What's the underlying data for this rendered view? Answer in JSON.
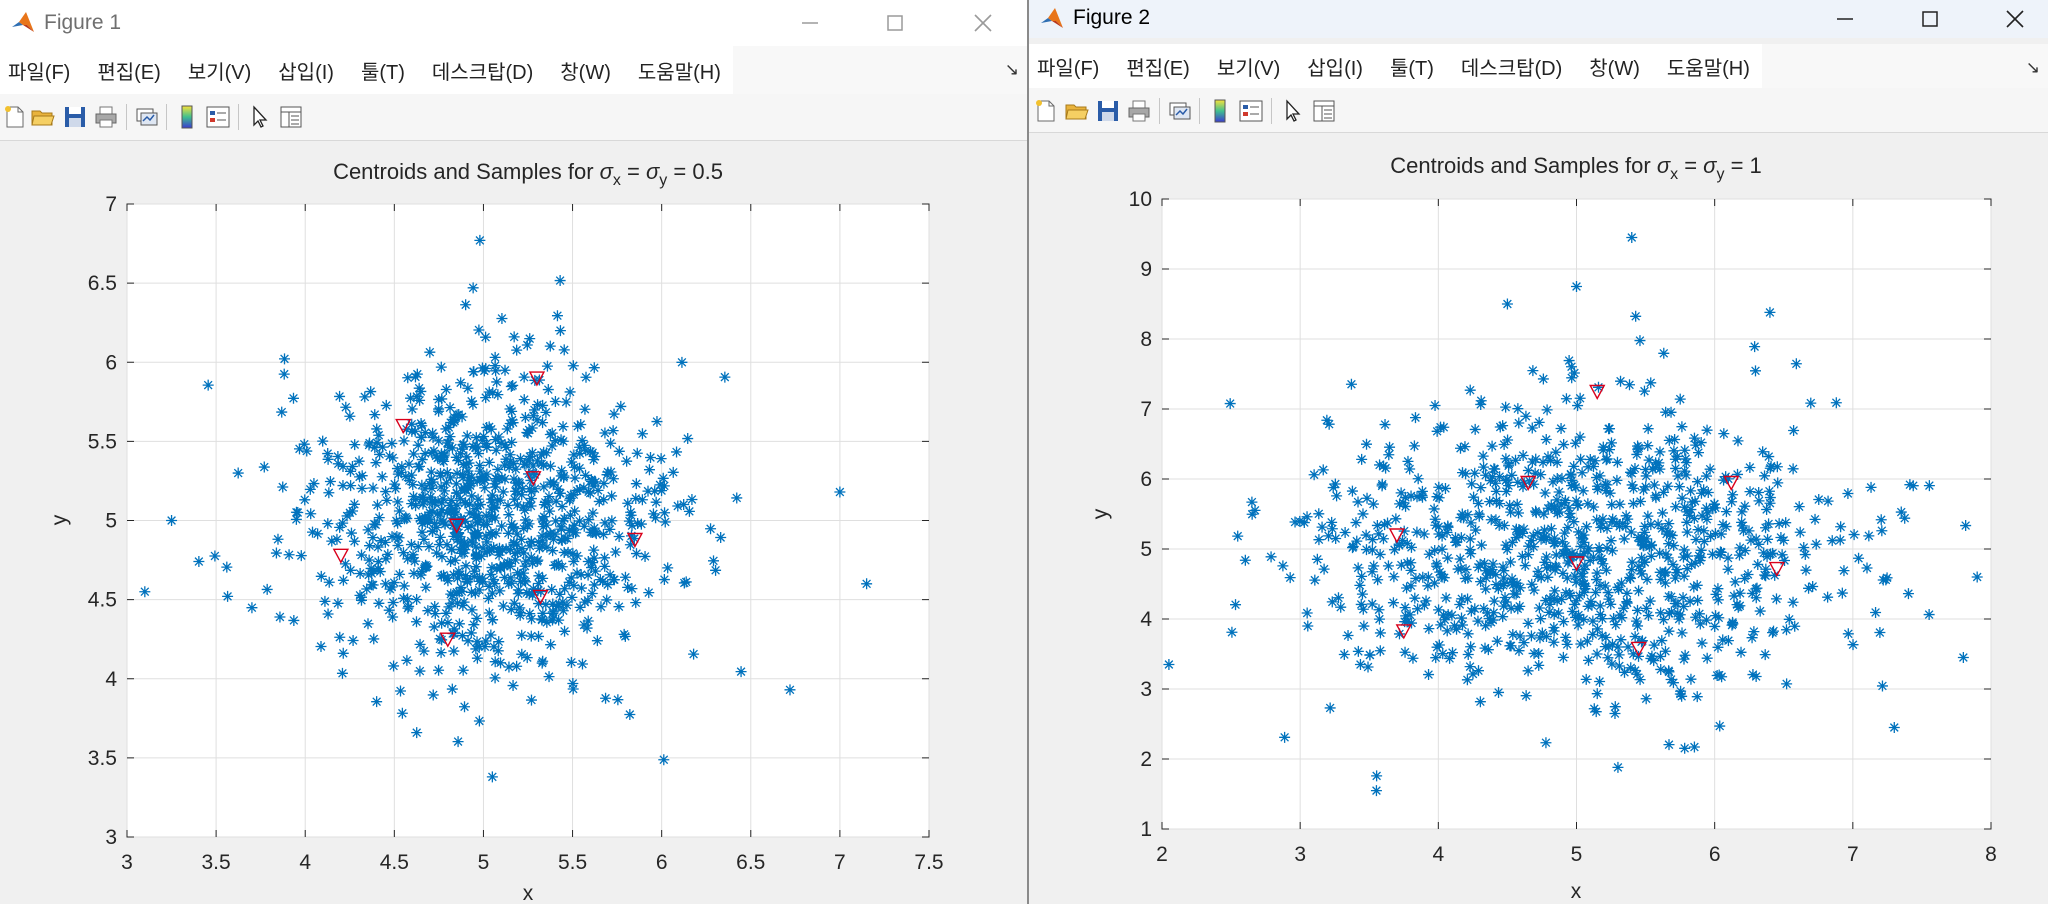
{
  "menu_items": [
    "파일(F)",
    "편집(E)",
    "보기(V)",
    "삽입(I)",
    "툴(T)",
    "데스크탑(D)",
    "창(W)",
    "도움말(H)"
  ],
  "figure1": {
    "window_title": "Figure 1",
    "chart_data": {
      "type": "scatter",
      "title": "Centroids and Samples for σx = σy = 0.5",
      "title_parts": {
        "lead": "Centroids and Samples for ",
        "sigma": "σ",
        "sub_x": "x",
        "eq": " = ",
        "sub_y": "y",
        "tail": " = 0.5"
      },
      "xlabel": "x",
      "ylabel": "y",
      "xlim": [
        3,
        7.5
      ],
      "ylim": [
        3,
        7
      ],
      "xticks": [
        "3",
        "3.5",
        "4",
        "4.5",
        "5",
        "5.5",
        "6",
        "6.5",
        "7",
        "7.5"
      ],
      "yticks": [
        "3",
        "3.5",
        "4",
        "4.5",
        "5",
        "5.5",
        "6",
        "6.5",
        "7"
      ],
      "grid": true,
      "sample_color": "#0072BD",
      "centroid_color": "#D9001B",
      "sample_distribution": {
        "count": 1000,
        "center": [
          5,
          5
        ],
        "sigma": [
          0.5,
          0.5
        ]
      },
      "outliers": [
        [
          3.1,
          4.55
        ],
        [
          3.25,
          5.0
        ],
        [
          7.0,
          5.18
        ],
        [
          7.15,
          4.6
        ],
        [
          6.72,
          3.93
        ],
        [
          5.05,
          3.38
        ],
        [
          4.98,
          6.77
        ]
      ],
      "centroids": [
        [
          4.55,
          5.6
        ],
        [
          5.3,
          5.9
        ],
        [
          5.28,
          5.27
        ],
        [
          4.85,
          4.97
        ],
        [
          4.2,
          4.78
        ],
        [
          5.85,
          4.88
        ],
        [
          5.32,
          4.52
        ],
        [
          4.8,
          4.25
        ]
      ]
    }
  },
  "figure2": {
    "window_title": "Figure 2",
    "chart_data": {
      "type": "scatter",
      "title": "Centroids and Samples for σx = σy = 1",
      "title_parts": {
        "lead": "Centroids and Samples for ",
        "sigma": "σ",
        "sub_x": "x",
        "eq": " = ",
        "sub_y": "y",
        "tail": " = 1"
      },
      "xlabel": "x",
      "ylabel": "y",
      "xlim": [
        2,
        8
      ],
      "ylim": [
        1,
        10
      ],
      "xticks": [
        "2",
        "3",
        "4",
        "5",
        "6",
        "7",
        "8"
      ],
      "yticks": [
        "1",
        "2",
        "3",
        "4",
        "5",
        "6",
        "7",
        "8",
        "9",
        "10"
      ],
      "grid": true,
      "sample_color": "#0072BD",
      "centroid_color": "#D9001B",
      "sample_distribution": {
        "count": 1000,
        "center": [
          5,
          5
        ],
        "sigma": [
          1,
          1
        ]
      },
      "outliers": [
        [
          5.4,
          9.45
        ],
        [
          5.0,
          8.75
        ],
        [
          4.5,
          8.5
        ],
        [
          6.4,
          8.38
        ],
        [
          2.05,
          3.35
        ],
        [
          7.9,
          4.6
        ],
        [
          7.8,
          3.45
        ],
        [
          5.3,
          1.88
        ],
        [
          7.3,
          2.45
        ]
      ],
      "centroids": [
        [
          5.15,
          7.25
        ],
        [
          4.65,
          5.95
        ],
        [
          6.12,
          5.95
        ],
        [
          3.7,
          5.2
        ],
        [
          5.0,
          4.8
        ],
        [
          6.45,
          4.72
        ],
        [
          3.75,
          3.83
        ],
        [
          5.45,
          3.58
        ]
      ]
    }
  }
}
